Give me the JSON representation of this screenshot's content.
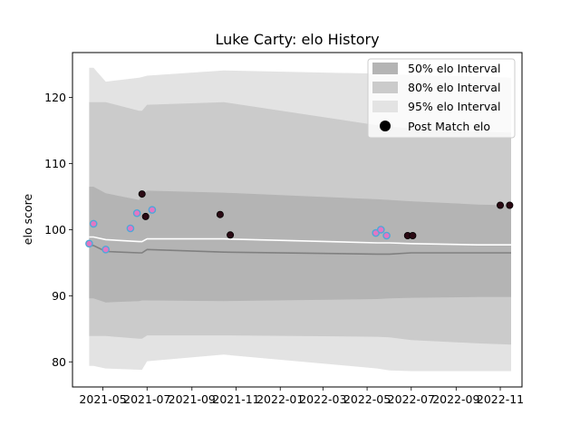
{
  "chart_data": {
    "type": "line",
    "title": "Luke Carty: elo History",
    "xlabel": "",
    "ylabel": "elo score",
    "x_ticks": [
      "2021-05",
      "2021-07",
      "2021-09",
      "2021-11",
      "2022-01",
      "2022-03",
      "2022-05",
      "2022-07",
      "2022-09",
      "2022-11"
    ],
    "x_tick_dates": [
      "2021-05-01",
      "2021-07-01",
      "2021-09-01",
      "2021-11-01",
      "2022-01-01",
      "2022-03-01",
      "2022-05-01",
      "2022-07-01",
      "2022-09-01",
      "2022-11-01"
    ],
    "y_ticks": [
      80,
      90,
      100,
      110,
      120
    ],
    "xlim": [
      "2021-03-20",
      "2022-12-01"
    ],
    "ylim": [
      76.2,
      126.8
    ],
    "grid": false,
    "legend_position": "top-right",
    "colors": {
      "band95": "#e3e3e3",
      "band80": "#cbcbcb",
      "band50": "#b4b4b4",
      "mean_line": "#ffffff",
      "median_line": "#808080",
      "point_fill_old": "#e377c2",
      "point_edge_old": "#4fa8d8",
      "point_fill_recent": "#2b0a14"
    },
    "legend": [
      {
        "label": "50% elo Interval",
        "kind": "band50"
      },
      {
        "label": "80% elo Interval",
        "kind": "band80"
      },
      {
        "label": "95% elo Interval",
        "kind": "band95"
      },
      {
        "label": "Post Match elo",
        "kind": "point"
      }
    ],
    "bands": {
      "x": [
        "2021-04-12",
        "2021-04-18",
        "2021-05-05",
        "2021-06-20",
        "2021-06-24",
        "2021-07-01",
        "2021-10-15",
        "2022-05-15",
        "2022-06-01",
        "2022-07-01",
        "2022-10-01",
        "2022-11-16"
      ],
      "p95_upper": [
        124.5,
        124.5,
        122.4,
        123.0,
        123.1,
        123.3,
        124.1,
        123.6,
        123.5,
        123.4,
        123.2,
        123.0
      ],
      "p80_upper": [
        119.3,
        119.3,
        119.3,
        118.0,
        118.0,
        118.9,
        119.3,
        115.8,
        115.6,
        115.3,
        114.8,
        114.7
      ],
      "p50_upper": [
        106.5,
        106.5,
        105.5,
        104.5,
        105.2,
        105.9,
        105.6,
        104.6,
        104.5,
        104.3,
        103.8,
        103.7
      ],
      "p50_lower": [
        89.6,
        89.6,
        89.0,
        89.2,
        89.3,
        89.3,
        89.2,
        89.5,
        89.6,
        89.7,
        89.8,
        89.8
      ],
      "p80_lower": [
        83.9,
        83.9,
        83.9,
        83.5,
        83.5,
        84.0,
        84.0,
        83.8,
        83.7,
        83.3,
        82.8,
        82.6
      ],
      "p95_lower": [
        79.4,
        79.4,
        79.0,
        78.8,
        78.8,
        80.1,
        81.1,
        79.0,
        78.7,
        78.6,
        78.6,
        78.6
      ],
      "mean": [
        98.9,
        98.9,
        98.5,
        98.2,
        98.2,
        98.6,
        98.6,
        98.0,
        98.0,
        97.9,
        97.7,
        97.7
      ],
      "median": [
        97.6,
        97.6,
        96.7,
        96.5,
        96.5,
        97.0,
        96.6,
        96.3,
        96.3,
        96.5,
        96.5,
        96.5
      ]
    },
    "series": [
      {
        "name": "Post Match elo",
        "points": [
          {
            "date": "2021-04-12",
            "elo": 97.9,
            "recent": false
          },
          {
            "date": "2021-04-18",
            "elo": 100.9,
            "recent": false
          },
          {
            "date": "2021-05-05",
            "elo": 97.0,
            "recent": false
          },
          {
            "date": "2021-06-08",
            "elo": 100.2,
            "recent": false
          },
          {
            "date": "2021-06-17",
            "elo": 102.5,
            "recent": false
          },
          {
            "date": "2021-06-24",
            "elo": 105.4,
            "recent": true
          },
          {
            "date": "2021-06-29",
            "elo": 102.0,
            "recent": true
          },
          {
            "date": "2021-07-08",
            "elo": 103.0,
            "recent": false
          },
          {
            "date": "2021-10-10",
            "elo": 102.3,
            "recent": true
          },
          {
            "date": "2021-10-24",
            "elo": 99.2,
            "recent": true
          },
          {
            "date": "2022-05-13",
            "elo": 99.5,
            "recent": false
          },
          {
            "date": "2022-05-20",
            "elo": 100.0,
            "recent": false
          },
          {
            "date": "2022-05-28",
            "elo": 99.1,
            "recent": false
          },
          {
            "date": "2022-06-26",
            "elo": 99.1,
            "recent": true
          },
          {
            "date": "2022-07-03",
            "elo": 99.1,
            "recent": true
          },
          {
            "date": "2022-11-01",
            "elo": 103.7,
            "recent": true
          },
          {
            "date": "2022-11-14",
            "elo": 103.7,
            "recent": true
          }
        ]
      }
    ]
  }
}
